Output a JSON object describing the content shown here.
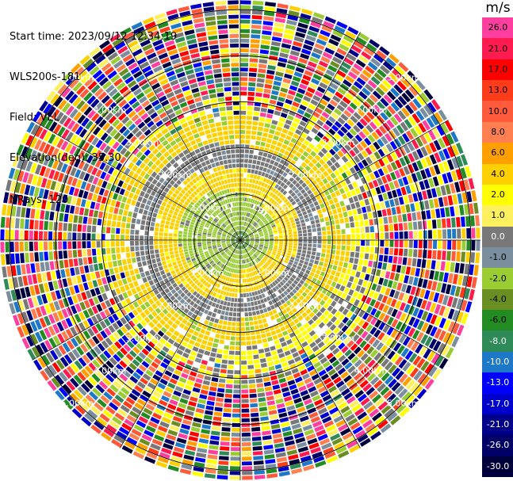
{
  "info": {
    "start_time": "Start time: 2023/09/12 12:34:19",
    "instrument": "WLS200s-181",
    "field": "Field: VEL",
    "elevation": "Elevation(deg): 35.30",
    "nrays": "NRays: 120"
  },
  "colorbar": {
    "unit": "m/s",
    "labels": [
      "26.0",
      "21.0",
      "17.0",
      "13.0",
      "10.0",
      "8.0",
      "6.0",
      "4.0",
      "2.0",
      "1.0",
      "0.0",
      "-1.0",
      "-2.0",
      "-4.0",
      "-6.0",
      "-8.0",
      "-10.0",
      "-13.0",
      "-17.0",
      "-21.0",
      "-26.0",
      "-30.0"
    ],
    "colors": [
      "#ff3fa0",
      "#ff1a50",
      "#ff0000",
      "#ff3c1a",
      "#ff5a3c",
      "#ff7f50",
      "#ffa000",
      "#ffd000",
      "#ffff00",
      "#fff060",
      "#787878",
      "#7a8e9e",
      "#9acd32",
      "#6b8e23",
      "#228b22",
      "#2e8b57",
      "#1e78c8",
      "#0000ff",
      "#0000cd",
      "#00008b",
      "#000066",
      "#00003a"
    ]
  },
  "chart_data": {
    "type": "ppi",
    "title": "",
    "field": "VEL",
    "units": "m/s",
    "nrays": 120,
    "elevation_deg": 35.3,
    "max_range_km": 5.0,
    "range_rings_km": [
      1.0,
      2.0,
      3.0,
      4.0,
      5.0
    ],
    "ring_labels": [
      "1.00km",
      "2.00km",
      "3.00km",
      "4.00km",
      "5.00km"
    ],
    "color_levels": [
      26.0,
      21.0,
      17.0,
      13.0,
      10.0,
      8.0,
      6.0,
      4.0,
      2.0,
      1.0,
      0.0,
      -1.0,
      -2.0,
      -4.0,
      -6.0,
      -8.0,
      -10.0,
      -13.0,
      -17.0,
      -21.0,
      -26.0,
      -30.0
    ],
    "spokes_deg": [
      0,
      30,
      60,
      90,
      120,
      150,
      180,
      210,
      240,
      270,
      300,
      330
    ]
  }
}
